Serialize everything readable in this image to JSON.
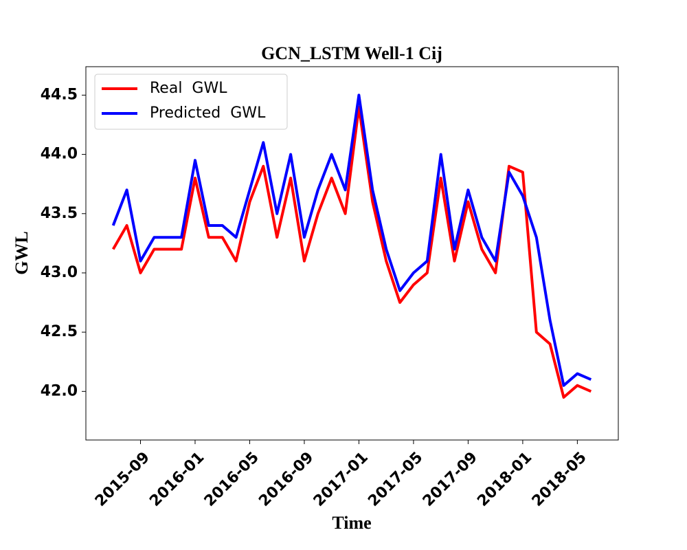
{
  "chart_data": {
    "type": "line",
    "title": "GCN_LSTM Well-1 Cij",
    "xlabel": "Time",
    "ylabel": "GWL",
    "x": [
      "2015-07",
      "2015-08",
      "2015-09",
      "2015-10",
      "2015-11",
      "2015-12",
      "2016-01",
      "2016-02",
      "2016-03",
      "2016-04",
      "2016-05",
      "2016-06",
      "2016-07",
      "2016-08",
      "2016-09",
      "2016-10",
      "2016-11",
      "2016-12",
      "2017-01",
      "2017-02",
      "2017-03",
      "2017-04",
      "2017-05",
      "2017-06",
      "2017-07",
      "2017-08",
      "2017-09",
      "2017-10",
      "2017-11",
      "2017-12",
      "2018-01",
      "2018-02",
      "2018-03",
      "2018-04",
      "2018-05",
      "2018-06"
    ],
    "series": [
      {
        "name": "Real  GWL",
        "color": "#ff0000",
        "values": [
          43.2,
          43.4,
          43.0,
          43.2,
          43.2,
          43.2,
          43.8,
          43.3,
          43.3,
          43.1,
          43.6,
          43.9,
          43.3,
          43.8,
          43.1,
          43.5,
          43.8,
          43.5,
          44.4,
          43.6,
          43.1,
          42.75,
          42.9,
          43.0,
          43.8,
          43.1,
          43.6,
          43.2,
          43.0,
          43.9,
          43.85,
          42.5,
          42.4,
          41.95,
          42.05,
          42.0
        ]
      },
      {
        "name": "Predicted  GWL",
        "color": "#0000ff",
        "values": [
          43.4,
          43.7,
          43.1,
          43.3,
          43.3,
          43.3,
          43.95,
          43.4,
          43.4,
          43.3,
          43.7,
          44.1,
          43.5,
          44.0,
          43.3,
          43.7,
          44.0,
          43.7,
          44.5,
          43.7,
          43.2,
          42.85,
          43.0,
          43.1,
          44.0,
          43.2,
          43.7,
          43.3,
          43.1,
          43.85,
          43.65,
          43.3,
          42.6,
          42.05,
          42.15,
          42.1
        ]
      }
    ],
    "xlim": [
      "2015-05",
      "2018-08"
    ],
    "xticks": [
      "2015-09",
      "2016-01",
      "2016-05",
      "2016-09",
      "2017-01",
      "2017-05",
      "2017-09",
      "2018-01",
      "2018-05"
    ],
    "ylim": [
      41.59,
      44.74
    ],
    "yticks": [
      {
        "value": 42,
        "label": "42.0"
      },
      42.5,
      {
        "value": 43,
        "label": "43.0"
      },
      43.5,
      {
        "value": 44,
        "label": "44.0"
      },
      44.5
    ],
    "legend": "upper left",
    "grid": false
  }
}
